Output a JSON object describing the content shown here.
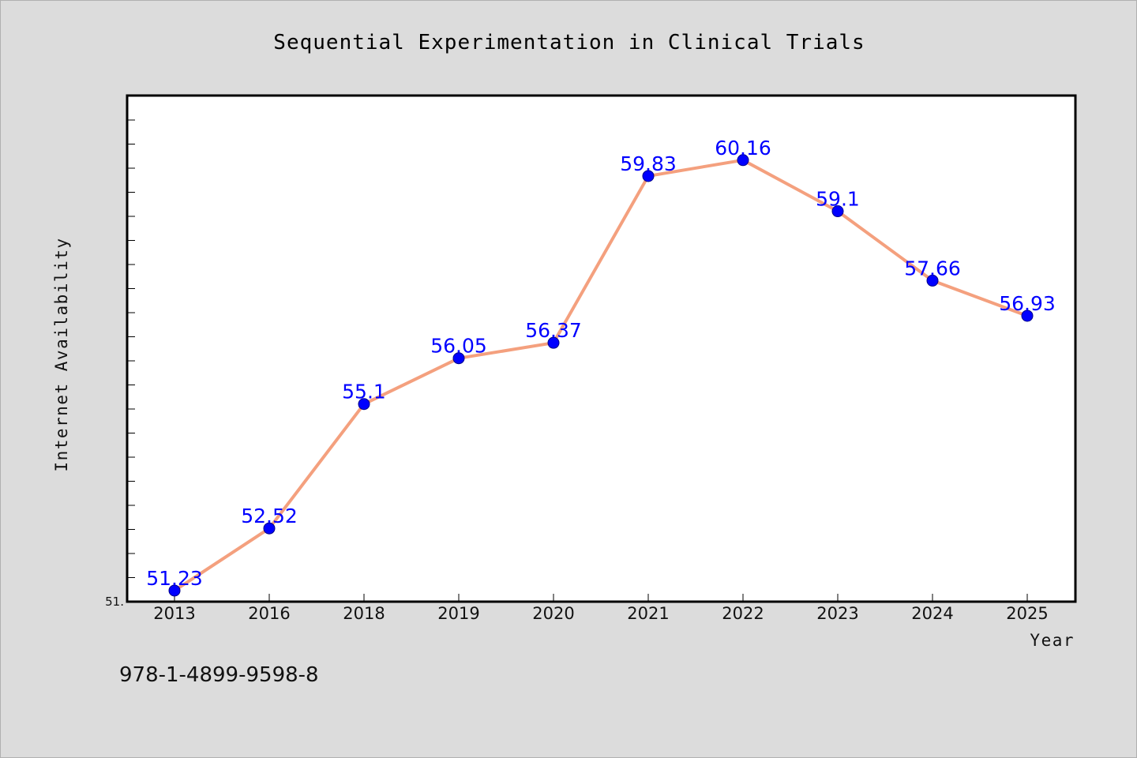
{
  "chart_data": {
    "type": "line",
    "title": "Sequential Experimentation in Clinical Trials",
    "xlabel": "Year",
    "ylabel": "Internet Availability",
    "categories": [
      "2013",
      "2016",
      "2018",
      "2019",
      "2020",
      "2021",
      "2022",
      "2023",
      "2024",
      "2025"
    ],
    "series": [
      {
        "values": [
          51.23,
          52.52,
          55.1,
          56.05,
          56.37,
          59.83,
          60.16,
          59.1,
          57.66,
          56.93
        ],
        "labels": [
          "51.23",
          "52.52",
          "55.1",
          "56.05",
          "56.37",
          "59.83",
          "60.16",
          "59.1",
          "57.66",
          "56.93"
        ]
      }
    ],
    "ylim": [
      51.0,
      61.5
    ],
    "y_tick_label": "51.",
    "line_color": "#f4a07e",
    "marker_color": "#0000ff",
    "label_color": "#0000ff",
    "grid": false,
    "legend": "none"
  },
  "footer": {
    "isbn": "978-1-4899-9598-8"
  },
  "colors": {
    "background": "#dcdcdc",
    "plot_background": "#ffffff",
    "frame": "#000000"
  }
}
